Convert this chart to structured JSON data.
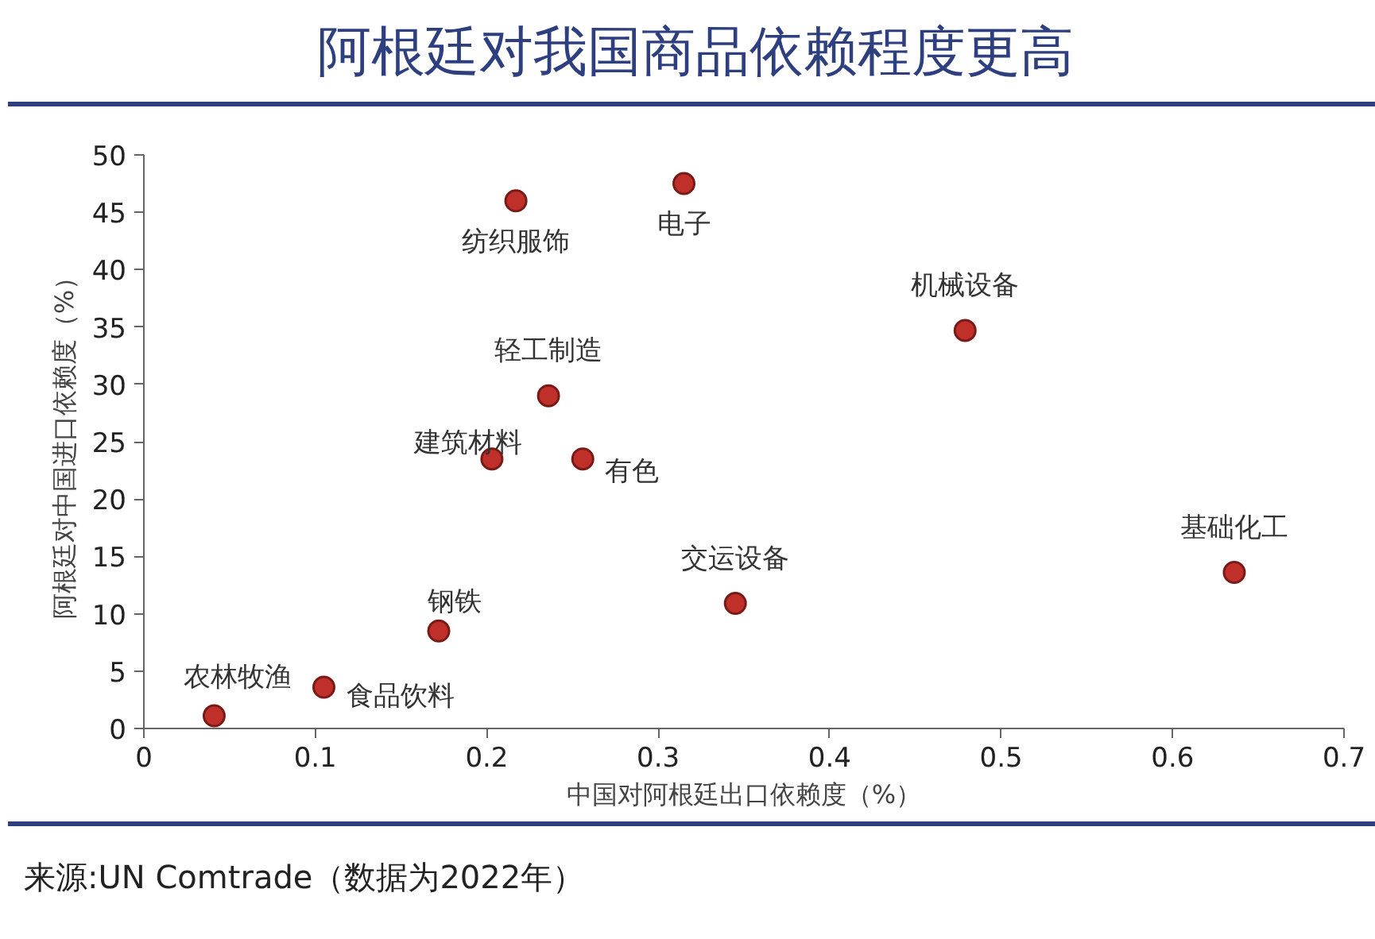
{
  "chart_data": {
    "type": "scatter",
    "title": "阿根廷对我国商品依赖程度更高",
    "xlabel": "中国对阿根廷出口依赖度（%）",
    "ylabel": "阿根廷对中国进口依赖度（%）",
    "xlim": [
      0,
      0.7
    ],
    "xticks": [
      0,
      0.1,
      0.2,
      0.3,
      0.4,
      0.5,
      0.6,
      0.7
    ],
    "ylim": [
      0,
      50
    ],
    "yticks": [
      0,
      5,
      10,
      15,
      20,
      25,
      30,
      35,
      40,
      45,
      50
    ],
    "grid": false,
    "marker": "circle",
    "series": [
      {
        "name": "农林牧渔",
        "color": "#c0302a",
        "x": [
          0.041
        ],
        "values": [
          1.1
        ]
      },
      {
        "name": "食品饮料",
        "color": "#c0302a",
        "x": [
          0.105
        ],
        "values": [
          3.6
        ]
      },
      {
        "name": "钢铁",
        "color": "#c0302a",
        "x": [
          0.172
        ],
        "values": [
          8.5
        ]
      },
      {
        "name": "建筑材料",
        "color": "#c0302a",
        "x": [
          0.203
        ],
        "values": [
          23.5
        ]
      },
      {
        "name": "纺织服饰",
        "color": "#c0302a",
        "x": [
          0.217
        ],
        "values": [
          46
        ]
      },
      {
        "name": "轻工制造",
        "color": "#c0302a",
        "x": [
          0.236
        ],
        "values": [
          29
        ]
      },
      {
        "name": "有色",
        "color": "#c0302a",
        "x": [
          0.256
        ],
        "values": [
          23.5
        ]
      },
      {
        "name": "电子",
        "color": "#c0302a",
        "x": [
          0.315
        ],
        "values": [
          47.5
        ]
      },
      {
        "name": "交运设备",
        "color": "#c0302a",
        "x": [
          0.345
        ],
        "values": [
          10.9
        ]
      },
      {
        "name": "机械设备",
        "color": "#c0302a",
        "x": [
          0.479
        ],
        "values": [
          34.7
        ]
      },
      {
        "name": "基础化工",
        "color": "#c0302a",
        "x": [
          0.636
        ],
        "values": [
          13.6
        ]
      }
    ],
    "annotations": [
      "来源:UN Comtrade（数据为2022年）"
    ]
  }
}
